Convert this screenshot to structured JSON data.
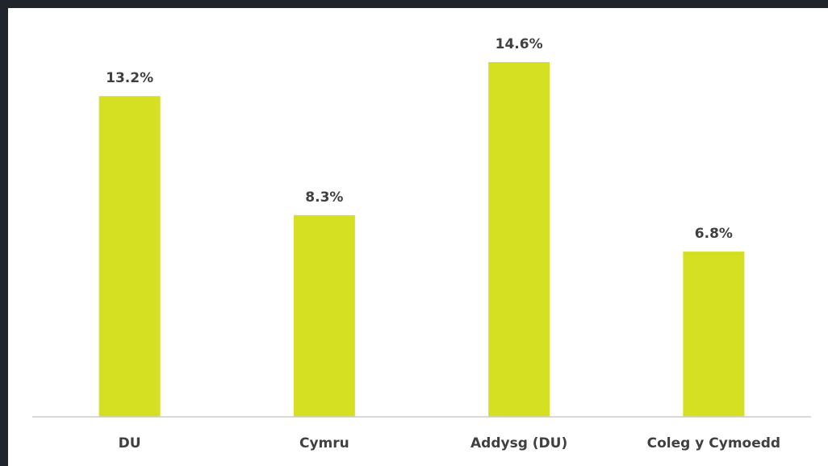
{
  "chart_data": {
    "type": "bar",
    "categories": [
      "DU",
      "Cymru",
      "Addysg (DU)",
      "Coleg y Cymoedd"
    ],
    "values": [
      13.2,
      8.3,
      14.6,
      6.8
    ],
    "value_labels": [
      "13.2%",
      "8.3%",
      "14.6%",
      "6.8%"
    ],
    "color": "#d4e021"
  }
}
